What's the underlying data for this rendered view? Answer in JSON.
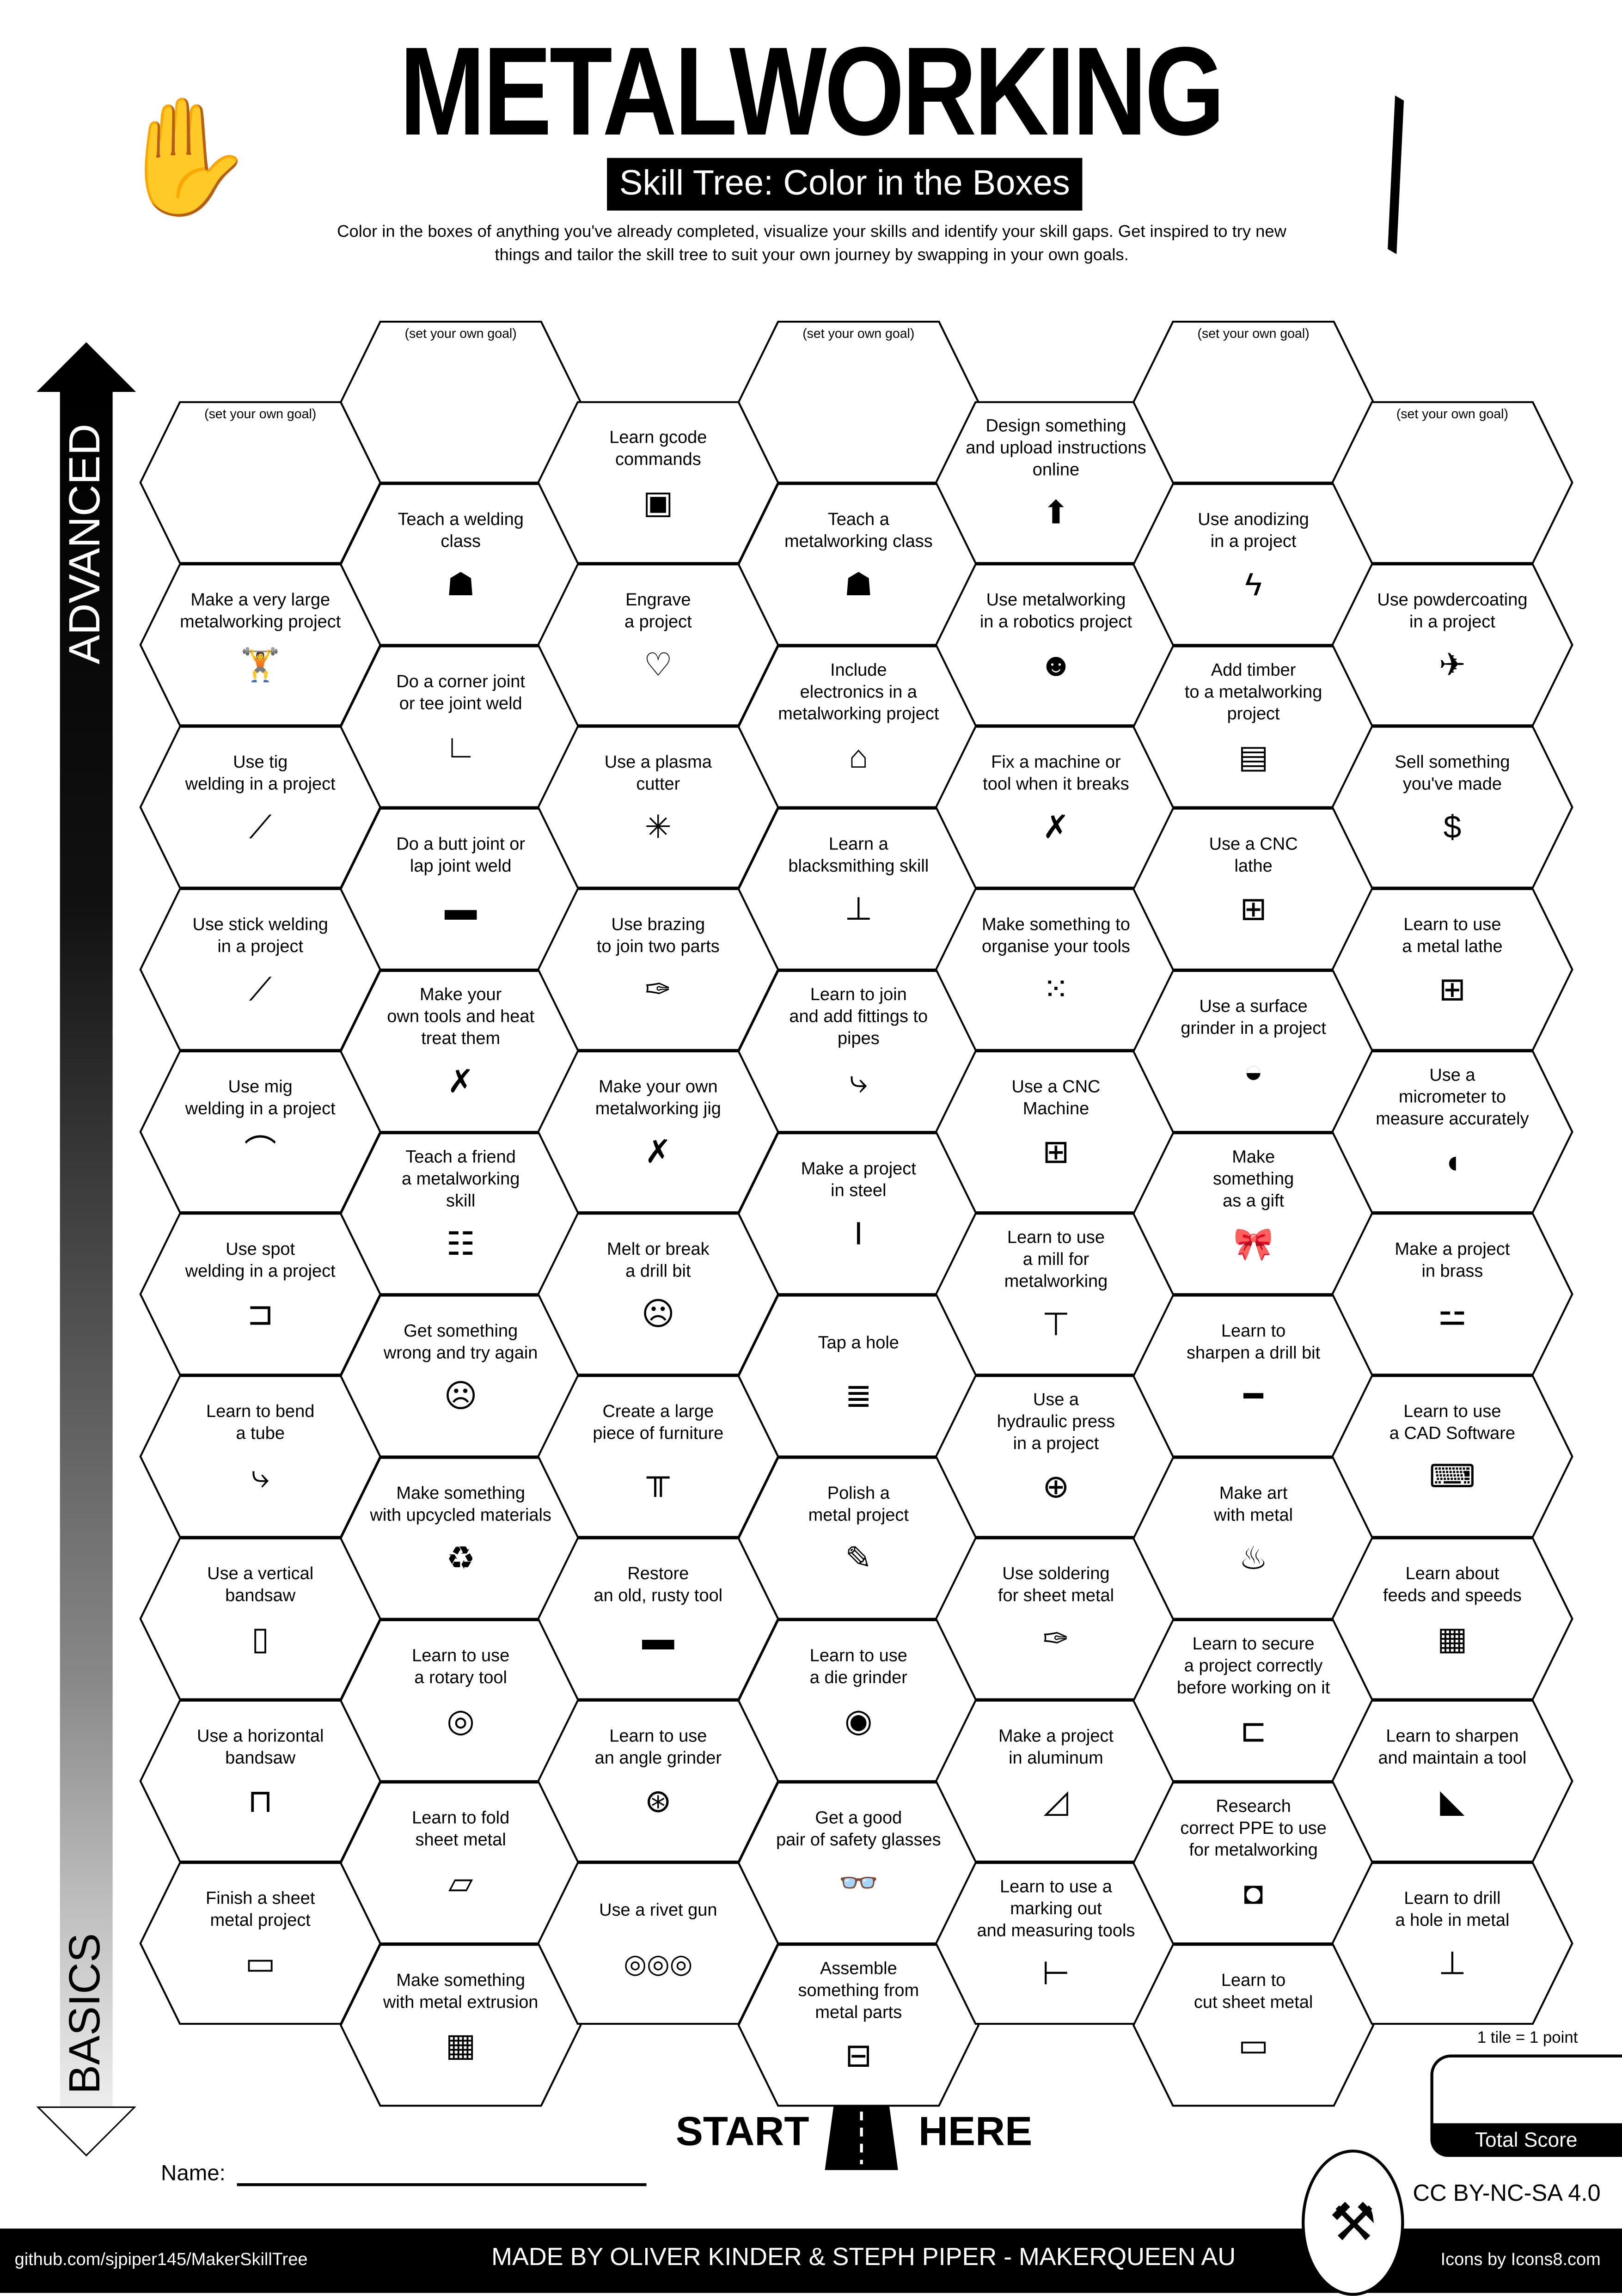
{
  "header": {
    "title": "METALWORKING",
    "subtitle": "Skill Tree: Color in the Boxes",
    "intro": "Color in the boxes of anything you've already completed, visualize your skills and identify your skill gaps.  Get inspired to try new things and tailor the skill tree to suit your own journey by swapping in your own goals."
  },
  "arrow": {
    "top_label": "ADVANCED",
    "bottom_label": "BASICS"
  },
  "columns": [
    {
      "tiles": [
        {
          "type": "goal",
          "label": "(set your own goal)"
        },
        {
          "label": "Make a very large\nmetalworking project",
          "icon": "person-carrying-icon"
        },
        {
          "label": "Use tig\nwelding in a project",
          "icon": "tig-torch-icon"
        },
        {
          "label": "Use stick welding\nin a project",
          "icon": "stick-welder-icon"
        },
        {
          "label": "Use mig\nwelding in a project",
          "icon": "mig-gun-icon"
        },
        {
          "label": "Use spot\nwelding in a project",
          "icon": "spot-weld-icon"
        },
        {
          "label": "Learn to bend\na tube",
          "icon": "bent-pipe-icon"
        },
        {
          "label": "Use a vertical\nbandsaw",
          "icon": "vertical-bandsaw-icon"
        },
        {
          "label": "Use a horizontal\nbandsaw",
          "icon": "horizontal-bandsaw-icon"
        },
        {
          "label": "Finish a sheet\nmetal project",
          "icon": "sheet-metal-icon"
        }
      ]
    },
    {
      "tiles": [
        {
          "type": "goal",
          "label": "(set your own goal)"
        },
        {
          "label": "Teach a welding\nclass",
          "icon": "teacher-icon"
        },
        {
          "label": "Do a corner joint\nor tee joint weld",
          "icon": "corner-joint-icon"
        },
        {
          "label": "Do a butt joint or\nlap joint weld",
          "icon": "butt-joint-icon"
        },
        {
          "label": "Make your\nown tools and heat\ntreat them",
          "icon": "wrench-screwdriver-icon"
        },
        {
          "label": "Teach a friend\na metalworking\nskill",
          "icon": "class-icon"
        },
        {
          "label": "Get something\nwrong and try again",
          "icon": "facepalm-icon"
        },
        {
          "label": "Make something\nwith upcycled materials",
          "icon": "recycle-icon"
        },
        {
          "label": "Learn to use\na rotary tool",
          "icon": "rotary-tool-icon"
        },
        {
          "label": "Learn to fold\nsheet metal",
          "icon": "folded-sheet-icon"
        },
        {
          "label": "Make something\nwith metal extrusion",
          "icon": "extrusion-icon"
        }
      ]
    },
    {
      "tiles": [
        {
          "label": "Learn gcode\ncommands",
          "icon": "gcode-icon"
        },
        {
          "label": "Engrave\na project",
          "icon": "engrave-heart-icon"
        },
        {
          "label": "Use a plasma\ncutter",
          "icon": "spark-icon"
        },
        {
          "label": "Use brazing\nto join two parts",
          "icon": "brazing-torch-icon"
        },
        {
          "label": "Make your own\nmetalworking jig",
          "icon": "wrench-screwdriver-icon"
        },
        {
          "label": "Melt or break\na drill bit",
          "icon": "facepalm-icon"
        },
        {
          "label": "Create a large\npiece of furniture",
          "icon": "table-icon"
        },
        {
          "label": "Restore\nan old, rusty tool",
          "icon": "chisel-icon"
        },
        {
          "label": "Learn to use\nan angle grinder",
          "icon": "angle-grinder-icon"
        },
        {
          "label": "Use a rivet gun",
          "icon": "rivets-icon"
        }
      ]
    },
    {
      "tiles": [
        {
          "type": "goal",
          "label": "(set your own goal)"
        },
        {
          "label": "Teach a\nmetalworking class",
          "icon": "teacher-icon"
        },
        {
          "label": "Include\nelectronics in a\nmetalworking project",
          "icon": "led-icon"
        },
        {
          "label": "Learn a\nblacksmithing skill",
          "icon": "anvil-icon"
        },
        {
          "label": "Learn to join\nand add fittings to\npipes",
          "icon": "pipe-icon"
        },
        {
          "label": "Make a project\nin steel",
          "icon": "i-beam-icon"
        },
        {
          "label": "Tap a hole",
          "icon": "screw-thread-icon"
        },
        {
          "label": "Polish a\nmetal project",
          "icon": "polish-icon"
        },
        {
          "label": "Learn to use\na die grinder",
          "icon": "die-grinder-icon"
        },
        {
          "label": "Get a good\npair of safety glasses",
          "icon": "safety-glasses-icon"
        },
        {
          "label": "Assemble\nsomething from\nmetal parts",
          "icon": "toolbox-icon"
        }
      ]
    },
    {
      "tiles": [
        {
          "label": "Design something\nand upload instructions\nonline",
          "icon": "upload-icon"
        },
        {
          "label": "Use metalworking\nin a robotics project",
          "icon": "robot-icon"
        },
        {
          "label": "Fix a machine or\ntool when it breaks",
          "icon": "wrench-screwdriver-icon"
        },
        {
          "label": "Make something to\norganise your tools",
          "icon": "pegboard-icon"
        },
        {
          "label": "Use a CNC\nMachine",
          "icon": "cnc-machine-icon"
        },
        {
          "label": "Learn to use\na mill for\nmetalworking",
          "icon": "mill-icon"
        },
        {
          "label": "Use a\nhydraulic press\nin a project",
          "icon": "press-icon"
        },
        {
          "label": "Use soldering\nfor sheet metal",
          "icon": "soldering-icon"
        },
        {
          "label": "Make a project\nin aluminum",
          "icon": "aluminum-icon"
        },
        {
          "label": "Learn to use a\nmarking out\nand measuring tools",
          "icon": "caliper-icon"
        }
      ]
    },
    {
      "tiles": [
        {
          "type": "goal",
          "label": "(set your own goal)"
        },
        {
          "label": "Use anodizing\nin a project",
          "icon": "lightning-icon"
        },
        {
          "label": "Add timber\nto a metalworking\nproject",
          "icon": "timber-icon"
        },
        {
          "label": "Use a CNC\nlathe",
          "icon": "lathe-icon"
        },
        {
          "label": "Use a surface\ngrinder in a project",
          "icon": "surface-grinder-icon"
        },
        {
          "label": "Make\nsomething\nas a gift",
          "icon": "gift-bow-icon"
        },
        {
          "label": "Learn to\nsharpen a drill bit",
          "icon": "drill-bit-icon"
        },
        {
          "label": "Make art\nwith metal",
          "icon": "sculpture-icon"
        },
        {
          "label": "Learn to secure\na project correctly\nbefore working on it",
          "icon": "clamp-icon"
        },
        {
          "label": "Research\ncorrect PPE to use\nfor metalworking",
          "icon": "welding-mask-icon"
        },
        {
          "label": "Learn to\ncut sheet metal",
          "icon": "sheet-metal-icon"
        }
      ]
    },
    {
      "tiles": [
        {
          "type": "goal",
          "label": "(set your own goal)"
        },
        {
          "label": "Use powdercoating\nin a project",
          "icon": "spray-gun-icon"
        },
        {
          "label": "Sell something\nyou've made",
          "icon": "dollar-icon"
        },
        {
          "label": "Learn to use\na metal lathe",
          "icon": "lathe-icon"
        },
        {
          "label": "Use a\nmicrometer to\nmeasure accurately",
          "icon": "micrometer-icon"
        },
        {
          "label": "Make a project\nin brass",
          "icon": "logs-icon"
        },
        {
          "label": "Learn to use\na CAD Software",
          "icon": "laptop-icon"
        },
        {
          "label": "Learn about\nfeeds and speeds",
          "icon": "calculator-icon"
        },
        {
          "label": "Learn to sharpen\nand maintain a tool",
          "icon": "saw-icon"
        },
        {
          "label": "Learn to drill\na hole in metal",
          "icon": "drill-press-icon"
        }
      ]
    }
  ],
  "start": {
    "left": "START",
    "right": "HERE"
  },
  "name_label": "Name:",
  "score": {
    "note": "1 tile = 1 point",
    "label": "Total Score"
  },
  "license": "CC BY-NC-SA 4.0",
  "footer": {
    "github": "github.com/sjpiper145/MakerSkillTree",
    "credits": "MADE BY OLIVER KINDER & STEPH PIPER  -  MAKERQUEEN AU",
    "icons": "Icons by Icons8.com"
  }
}
